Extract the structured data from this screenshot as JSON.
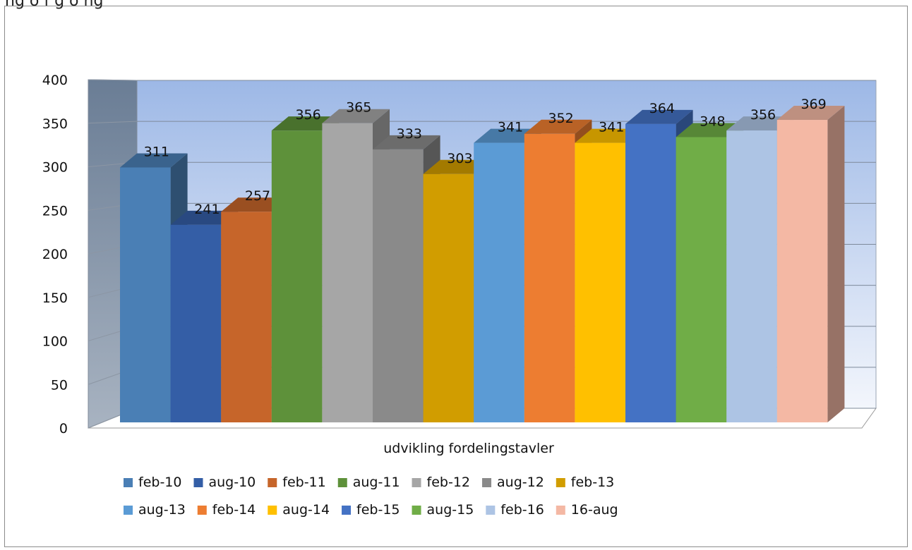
{
  "top_text": "ng o  f  g  o ng",
  "chart_data": {
    "type": "bar",
    "title": "",
    "xlabel": "",
    "ylabel": "",
    "categories": [
      "udvikling fordelingstavler"
    ],
    "ylim": [
      0,
      400
    ],
    "yticks": [
      0,
      50,
      100,
      150,
      200,
      250,
      300,
      350,
      400
    ],
    "grid": true,
    "legend_position": "bottom",
    "series": [
      {
        "name": "feb-10",
        "values": [
          311
        ],
        "color": "#4a7fb5"
      },
      {
        "name": "aug-10",
        "values": [
          241
        ],
        "color": "#345ea6"
      },
      {
        "name": "feb-11",
        "values": [
          257
        ],
        "color": "#c6652a"
      },
      {
        "name": "aug-11",
        "values": [
          356
        ],
        "color": "#5e913a"
      },
      {
        "name": "feb-12",
        "values": [
          365
        ],
        "color": "#a6a6a6"
      },
      {
        "name": "aug-12",
        "values": [
          333
        ],
        "color": "#8a8a8a"
      },
      {
        "name": "feb-13",
        "values": [
          303
        ],
        "color": "#d19d00"
      },
      {
        "name": "aug-13",
        "values": [
          341
        ],
        "color": "#5b9bd5"
      },
      {
        "name": "feb-14",
        "values": [
          352
        ],
        "color": "#ed7d31"
      },
      {
        "name": "aug-14",
        "values": [
          341
        ],
        "color": "#ffc000"
      },
      {
        "name": "feb-15",
        "values": [
          364
        ],
        "color": "#4472c4"
      },
      {
        "name": "aug-15",
        "values": [
          348
        ],
        "color": "#70ad47"
      },
      {
        "name": "feb-16",
        "values": [
          356
        ],
        "color": "#adc4e4"
      },
      {
        "name": "16-aug",
        "values": [
          369
        ],
        "color": "#f4b8a4"
      }
    ]
  }
}
